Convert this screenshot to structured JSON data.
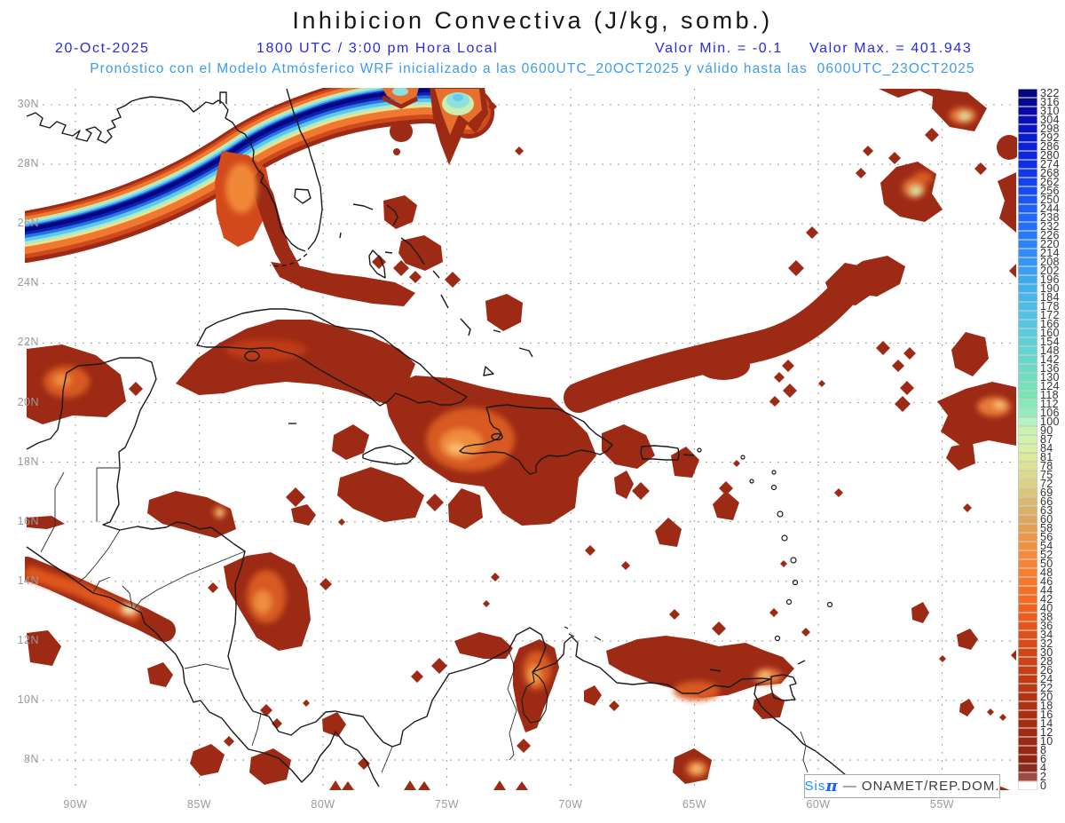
{
  "header": {
    "title": "Inhibicion Convectiva (J/kg, somb.)",
    "date": "20-Oct-2025",
    "time": "1800 UTC / 3:00 pm Hora Local",
    "min_label": "Valor Min. = -0.1",
    "max_label": "Valor Max. = 401.943",
    "forecast_line": "Pronóstico con el Modelo Atmósferico WRF inicializado a las 0600UTC_20OCT2025 y válido hasta las  0600UTC_23OCT2025",
    "title_color": "#161616",
    "line2_color": "#2a2ae0",
    "line3_color": "#3b9bf2"
  },
  "map": {
    "lat_labels": [
      "30N",
      "28N",
      "26N",
      "24N",
      "22N",
      "20N",
      "18N",
      "16N",
      "14N",
      "12N",
      "10N",
      "8N"
    ],
    "lon_labels": [
      "90W",
      "85W",
      "80W",
      "75W",
      "70W",
      "65W",
      "60W",
      "55W"
    ],
    "grid_color": "#9c9c9c",
    "coast_color": "#1a1a1a",
    "field_main_color": "#9C2A14",
    "field_core_color": "#EE8C40",
    "band_core_color": "#06077E"
  },
  "colorbar": {
    "levels": [
      322,
      316,
      310,
      304,
      298,
      292,
      286,
      280,
      274,
      268,
      262,
      256,
      250,
      244,
      238,
      232,
      226,
      220,
      214,
      208,
      202,
      196,
      190,
      184,
      178,
      172,
      166,
      160,
      154,
      148,
      142,
      136,
      130,
      124,
      118,
      112,
      106,
      100,
      90,
      87,
      84,
      81,
      78,
      75,
      72,
      69,
      66,
      63,
      60,
      58,
      56,
      54,
      52,
      50,
      48,
      46,
      44,
      42,
      40,
      38,
      36,
      34,
      32,
      30,
      28,
      26,
      24,
      22,
      20,
      18,
      16,
      14,
      12,
      10,
      8,
      6,
      4,
      2,
      0
    ],
    "anchors": [
      {
        "level": 322,
        "color": "#06077C"
      },
      {
        "level": 310,
        "color": "#0809A6"
      },
      {
        "level": 298,
        "color": "#0A14C6"
      },
      {
        "level": 286,
        "color": "#0B20D8"
      },
      {
        "level": 274,
        "color": "#0D2EE6"
      },
      {
        "level": 262,
        "color": "#1342F0"
      },
      {
        "level": 250,
        "color": "#1955F8"
      },
      {
        "level": 238,
        "color": "#1F68FB"
      },
      {
        "level": 226,
        "color": "#267AFB"
      },
      {
        "level": 214,
        "color": "#2E8DF8"
      },
      {
        "level": 202,
        "color": "#37A0F3"
      },
      {
        "level": 190,
        "color": "#41B1ED"
      },
      {
        "level": 178,
        "color": "#4BBDE6"
      },
      {
        "level": 166,
        "color": "#55C7DF"
      },
      {
        "level": 154,
        "color": "#5ED0D6"
      },
      {
        "level": 142,
        "color": "#66D8CB"
      },
      {
        "level": 130,
        "color": "#6EDEC0"
      },
      {
        "level": 118,
        "color": "#79E4B6"
      },
      {
        "level": 106,
        "color": "#93EDBC"
      },
      {
        "level": 100,
        "color": "#B5F3C0"
      },
      {
        "level": 90,
        "color": "#CBF3B0"
      },
      {
        "level": 84,
        "color": "#D8F0A2"
      },
      {
        "level": 78,
        "color": "#DFE292"
      },
      {
        "level": 72,
        "color": "#DCD083"
      },
      {
        "level": 66,
        "color": "#D8B971"
      },
      {
        "level": 60,
        "color": "#DCA75B"
      },
      {
        "level": 56,
        "color": "#EE9746"
      },
      {
        "level": 52,
        "color": "#F68A3A"
      },
      {
        "level": 48,
        "color": "#F87E2D"
      },
      {
        "level": 44,
        "color": "#F57022"
      },
      {
        "level": 40,
        "color": "#F0631D"
      },
      {
        "level": 36,
        "color": "#E45619"
      },
      {
        "level": 32,
        "color": "#D84A17"
      },
      {
        "level": 28,
        "color": "#CC4215"
      },
      {
        "level": 24,
        "color": "#C23A13"
      },
      {
        "level": 20,
        "color": "#B63312"
      },
      {
        "level": 16,
        "color": "#AC2E11"
      },
      {
        "level": 12,
        "color": "#A22A10"
      },
      {
        "level": 8,
        "color": "#982610"
      },
      {
        "level": 6,
        "color": "#92240F"
      },
      {
        "level": 4,
        "color": "#8C2C1F"
      },
      {
        "level": 2,
        "color": "#9E4A42"
      },
      {
        "level": 0,
        "color": "#FFFFFF"
      }
    ],
    "label_color": "#333333"
  },
  "attribution": {
    "system": "Sis",
    "pi": "π",
    "separator": " — ",
    "org": "ONAMET/REP.DOM."
  }
}
